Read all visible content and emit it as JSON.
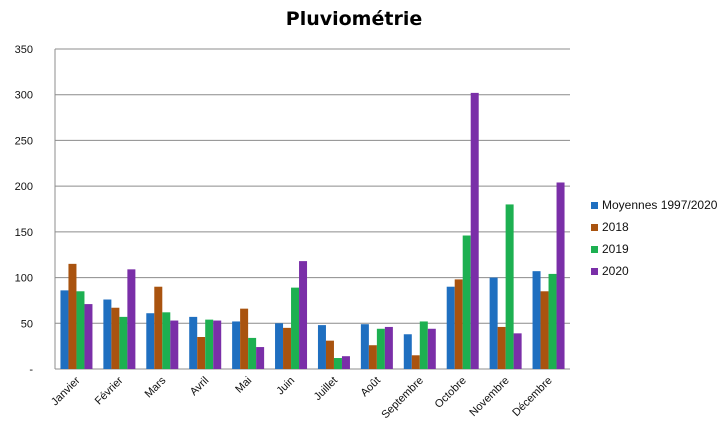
{
  "chart_data": {
    "type": "bar",
    "title": "Pluviométrie",
    "xlabel": "",
    "ylabel": "",
    "ylim": [
      0,
      350
    ],
    "yticks": [
      0,
      50,
      100,
      150,
      200,
      250,
      300,
      350
    ],
    "ytick_labels": [
      "-",
      "50",
      "100",
      "150",
      "200",
      "250",
      "300",
      "350"
    ],
    "grid": true,
    "legend_position": "right",
    "categories": [
      "Janvier",
      "Février",
      "Mars",
      "Avril",
      "Mai",
      "Juin",
      "Juillet",
      "Août",
      "Septembre",
      "Octobre",
      "Novembre",
      "Décembre"
    ],
    "series": [
      {
        "name": "Moyennes 1997/2020",
        "color": "#1F6FC0",
        "values": [
          86,
          76,
          61,
          57,
          52,
          50,
          48,
          49,
          38,
          90,
          100,
          107
        ]
      },
      {
        "name": "2018",
        "color": "#A9530F",
        "values": [
          115,
          67,
          90,
          35,
          66,
          45,
          31,
          26,
          15,
          98,
          46,
          85
        ]
      },
      {
        "name": "2019",
        "color": "#1DB051",
        "values": [
          85,
          57,
          62,
          54,
          34,
          89,
          12,
          44,
          52,
          146,
          180,
          104
        ]
      },
      {
        "name": "2020",
        "color": "#7A2FA8",
        "values": [
          71,
          109,
          53,
          53,
          24,
          118,
          14,
          46,
          44,
          302,
          39,
          204
        ]
      }
    ]
  }
}
